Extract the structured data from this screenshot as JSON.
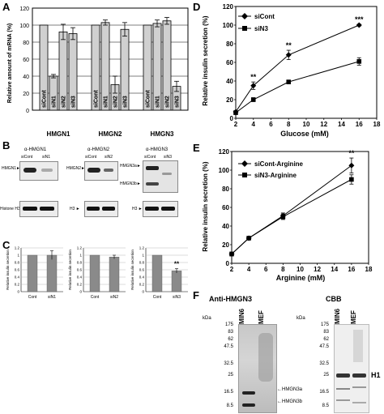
{
  "panels": {
    "a": "A",
    "b": "B",
    "c": "C",
    "d": "D",
    "e": "E",
    "f": "F"
  },
  "panelA": {
    "ylabel": "Relative amount of mRNA (%)",
    "yticks": [
      "0",
      "20",
      "40",
      "60",
      "80",
      "100",
      "120"
    ],
    "group_labels": [
      "HMGN1",
      "HMGN2",
      "HMGN3"
    ],
    "bar_labels": [
      [
        "siCont",
        "siN1",
        "siN2",
        "siN3"
      ],
      [
        "siCont",
        "siN1",
        "siN2",
        "siN3"
      ],
      [
        "siCont",
        "siN1",
        "siN2",
        "siN3"
      ]
    ]
  },
  "panelB": {
    "blots": [
      {
        "title": "α-HMGN1",
        "lanes": [
          "siCont",
          "siN1"
        ],
        "bands": [
          "HMGN1►",
          "Histone H3►"
        ]
      },
      {
        "title": "α-HMGN2",
        "lanes": [
          "siCont",
          "siN2"
        ],
        "bands": [
          "HMGN2►",
          "H3 ►"
        ]
      },
      {
        "title": "α-HMGN3",
        "lanes": [
          "siCont",
          "siN3"
        ],
        "bands": [
          "HMGN3a►",
          "HMGN3b►",
          "H3 ►"
        ]
      }
    ]
  },
  "panelC": {
    "ylabel": "Relative insulin secretion",
    "yticks": [
      "0",
      "0.2",
      "0.4",
      "0.6",
      "0.8",
      "1",
      "1.2"
    ],
    "charts": [
      {
        "cats": [
          "Cont",
          "siN1"
        ]
      },
      {
        "cats": [
          "Cont",
          "siN2"
        ]
      },
      {
        "cats": [
          "Cont",
          "siN3"
        ],
        "sig": "**"
      }
    ]
  },
  "panelD": {
    "ylabel": "Relative insulin secretion (%)",
    "xlabel": "Glucose (mM)",
    "legend": [
      "siCont",
      "siN3"
    ],
    "yticks": [
      "0",
      "20",
      "40",
      "60",
      "80",
      "100",
      "120"
    ],
    "xticks": [
      "2",
      "4",
      "6",
      "8",
      "10",
      "12",
      "14",
      "16",
      "18"
    ],
    "sig": [
      "**",
      "**",
      "***"
    ]
  },
  "panelE": {
    "ylabel": "Relative insulin secretion (%)",
    "xlabel": "Arginine (mM)",
    "legend": [
      "siCont-Arginine",
      "siN3-Arginine"
    ],
    "yticks": [
      "0",
      "20",
      "40",
      "60",
      "80",
      "100",
      "120"
    ],
    "xticks": [
      "2",
      "4",
      "6",
      "8",
      "10",
      "12",
      "14",
      "16",
      "18"
    ],
    "sig": [
      "**"
    ]
  },
  "panelF": {
    "left_title": "Anti-HMGN3",
    "right_title": "CBB",
    "kda": "kDa",
    "markers": [
      "175",
      "83",
      "62",
      "47.5",
      "32.5",
      "25",
      "16.5",
      "8.5"
    ],
    "lanes": [
      "MIN6",
      "MEF"
    ],
    "band_labels": [
      "HMGN3a",
      "HMGN3b"
    ],
    "h1": "H1"
  },
  "chart_data": [
    {
      "type": "bar",
      "categories": [
        "HMGN1",
        "HMGN2",
        "HMGN3"
      ],
      "series": [
        {
          "name": "siCont",
          "values": [
            100,
            100,
            100
          ],
          "err": [
            0,
            0,
            0
          ]
        },
        {
          "name": "siN1",
          "values": [
            40,
            103,
            102
          ],
          "err": [
            2,
            3,
            4
          ]
        },
        {
          "name": "siN2",
          "values": [
            92,
            30,
            105
          ],
          "err": [
            9,
            10,
            4
          ]
        },
        {
          "name": "siN3",
          "values": [
            90,
            95,
            28
          ],
          "err": [
            7,
            8,
            6
          ]
        }
      ],
      "ylabel": "Relative amount of mRNA (%)",
      "ylim": [
        0,
        120
      ]
    },
    {
      "type": "bar",
      "categories": [
        "Cont",
        "siN1"
      ],
      "values": [
        1.0,
        1.0
      ],
      "err": [
        0,
        0.12
      ],
      "ylabel": "Relative insulin secretion",
      "ylim": [
        0,
        1.2
      ]
    },
    {
      "type": "bar",
      "categories": [
        "Cont",
        "siN2"
      ],
      "values": [
        1.0,
        0.95
      ],
      "err": [
        0,
        0.05
      ],
      "ylabel": "Relative insulin secretion",
      "ylim": [
        0,
        1.2
      ]
    },
    {
      "type": "bar",
      "categories": [
        "Cont",
        "siN3"
      ],
      "values": [
        1.0,
        0.57
      ],
      "err": [
        0,
        0.06
      ],
      "ylabel": "Relative insulin secretion",
      "ylim": [
        0,
        1.2
      ]
    },
    {
      "type": "line",
      "x": [
        2,
        4,
        8,
        16
      ],
      "series": [
        {
          "name": "siCont",
          "values": [
            7,
            35,
            68,
            100
          ],
          "err": [
            1,
            4,
            5,
            1
          ]
        },
        {
          "name": "siN3",
          "values": [
            6,
            20,
            39,
            61
          ],
          "err": [
            1,
            2,
            2,
            4
          ]
        }
      ],
      "xlabel": "Glucose (mM)",
      "ylabel": "Relative insulin secretion (%)",
      "xlim": [
        2,
        18
      ],
      "ylim": [
        0,
        120
      ]
    },
    {
      "type": "line",
      "x": [
        2,
        4,
        8,
        16
      ],
      "series": [
        {
          "name": "siCont-Arginine",
          "values": [
            10,
            27,
            51,
            105
          ],
          "err": [
            2,
            1,
            3,
            8
          ]
        },
        {
          "name": "siN3-Arginine",
          "values": [
            10,
            27,
            50,
            90
          ],
          "err": [
            2,
            1,
            3,
            5
          ]
        }
      ],
      "xlabel": "Arginine (mM)",
      "ylabel": "Relative insulin secretion (%)",
      "xlim": [
        2,
        18
      ],
      "ylim": [
        0,
        120
      ]
    }
  ]
}
